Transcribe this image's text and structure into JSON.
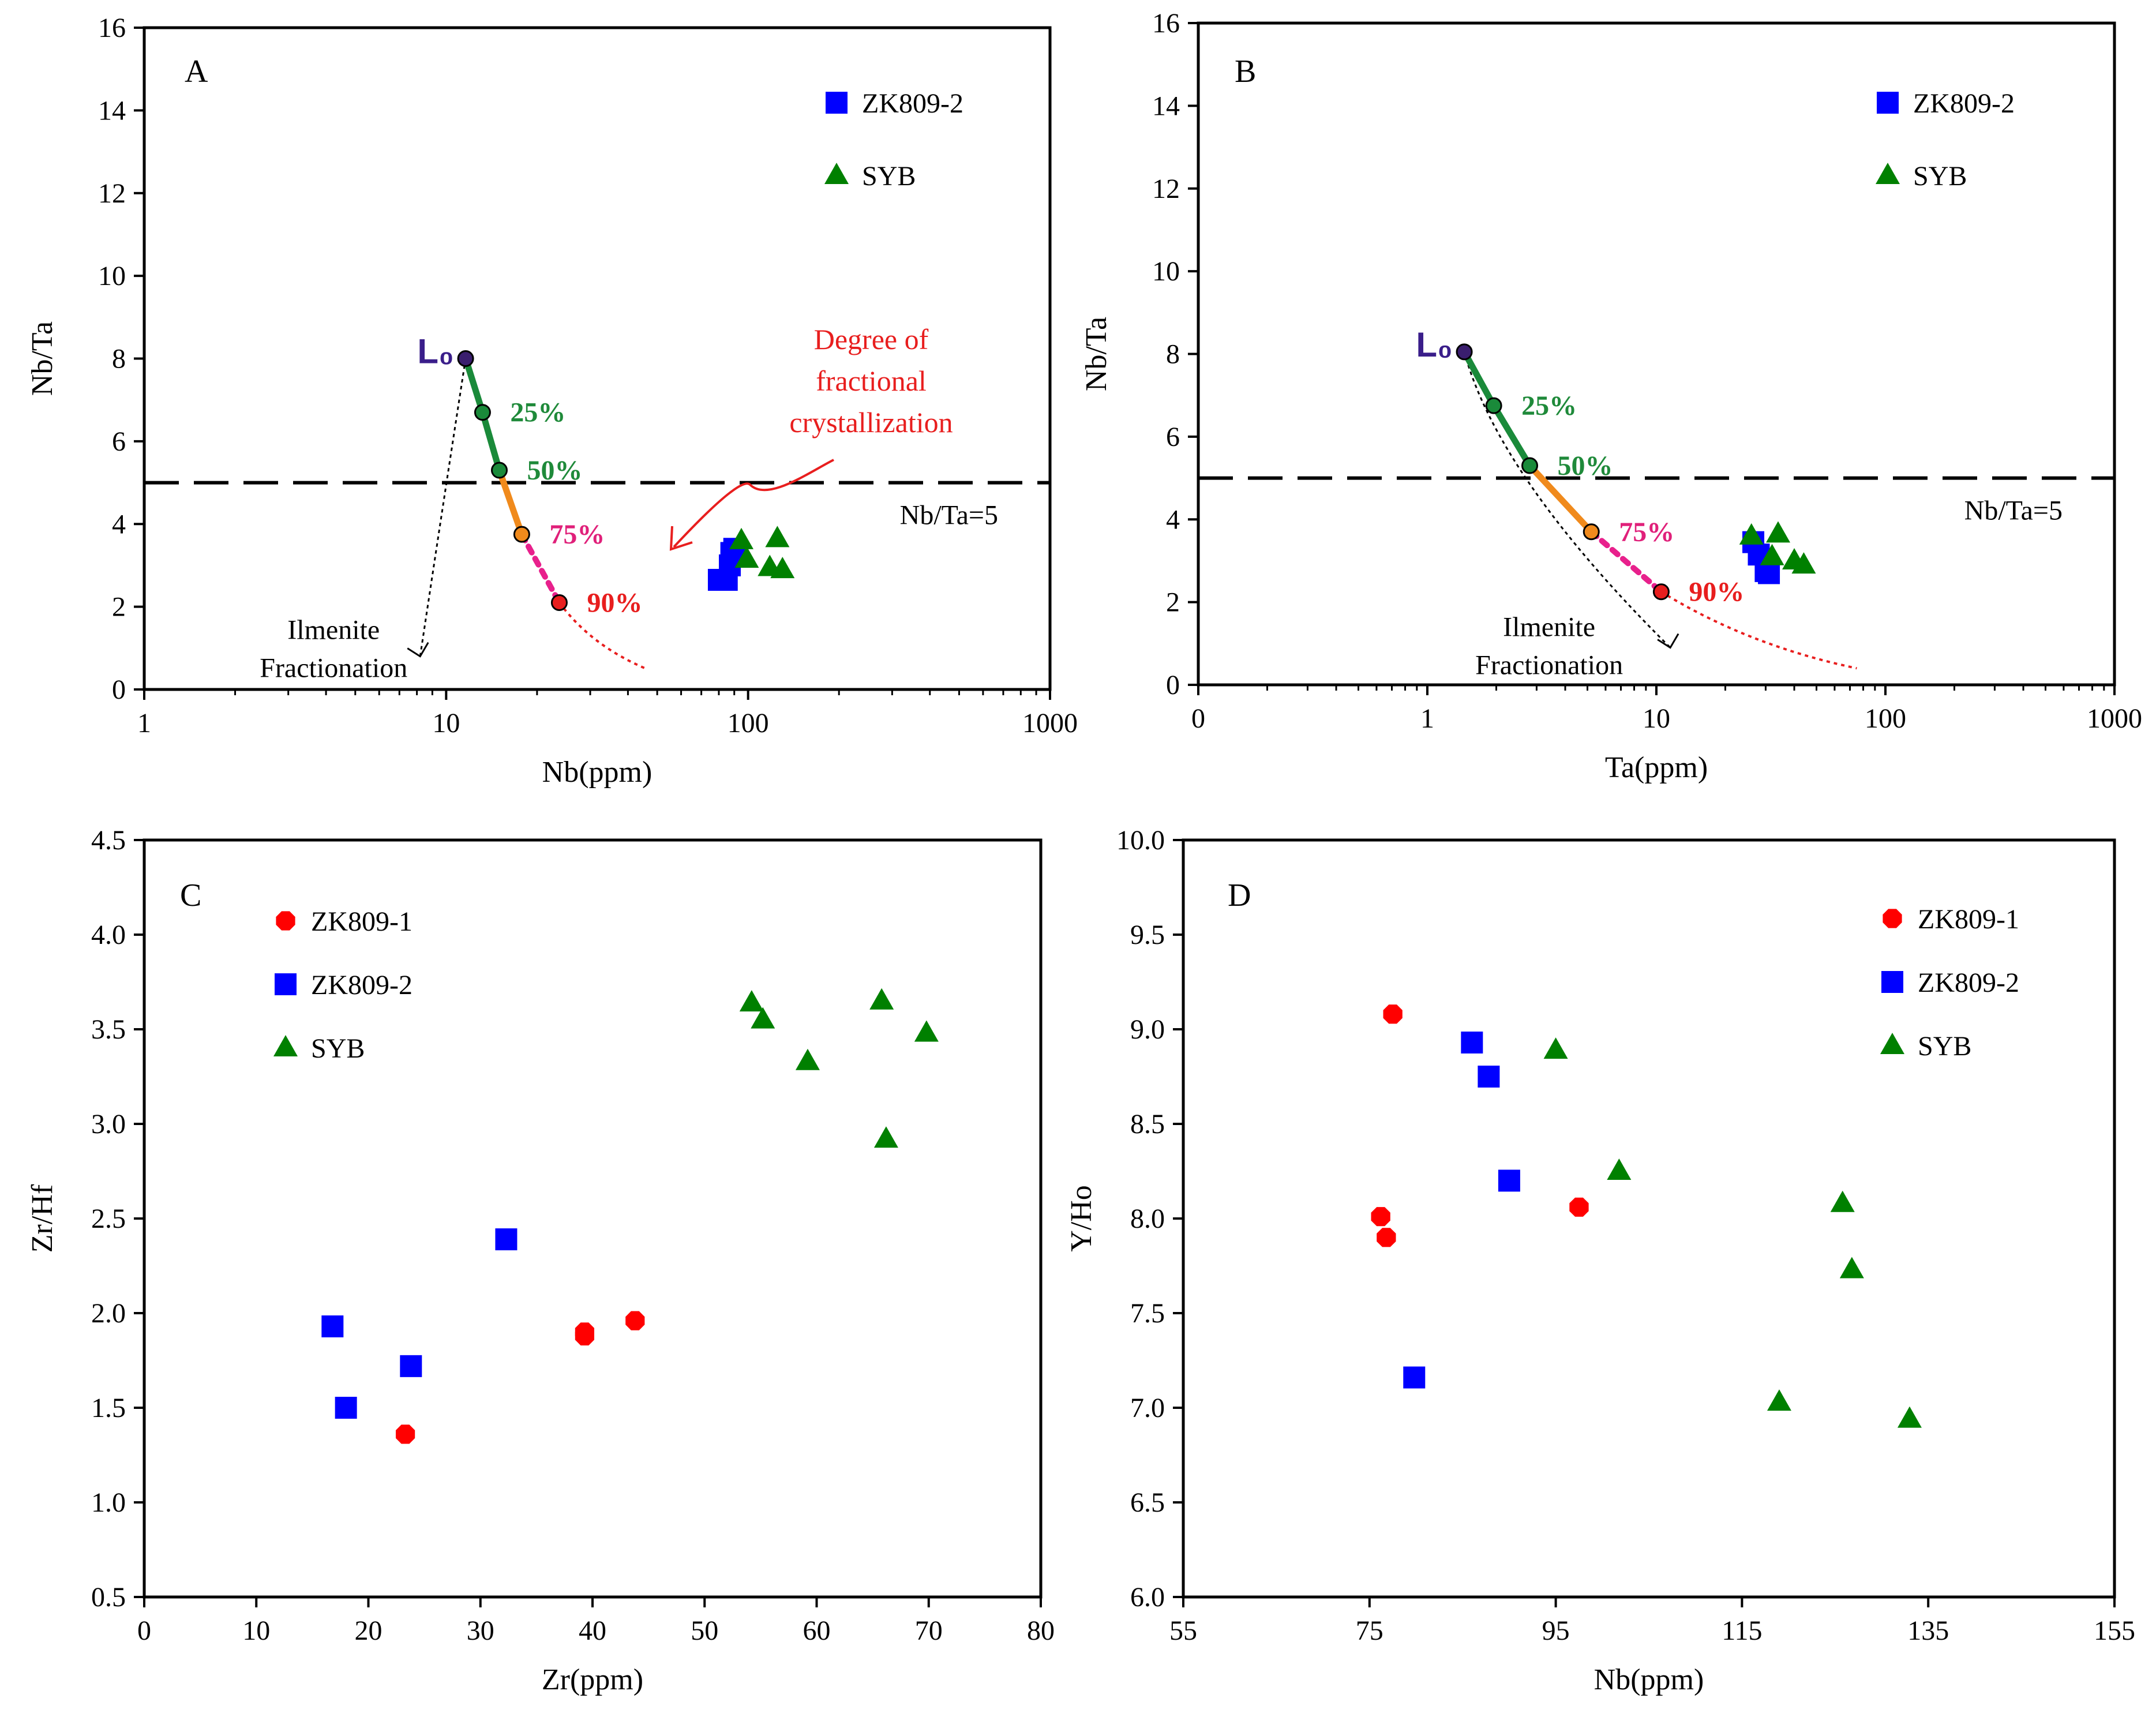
{
  "colors": {
    "zk809_1": "#ff0000",
    "zk809_2": "#0000ff",
    "syb": "#008000",
    "curve_green": "#1a8a3a",
    "curve_orange": "#f08a1c",
    "curve_pink": "#e8208c",
    "curve_red": "#e81e1e",
    "l0_point": "#3a1e6e",
    "pct_green": "#1f8a3a",
    "pct_pink": "#e0207a",
    "pct_red": "#e81e1e",
    "l0_label": "#3a1e8a"
  },
  "chart_data": [
    {
      "panel": "A",
      "type": "scatter",
      "x_scale": "log",
      "xlim": [
        1,
        1000
      ],
      "ylim": [
        0,
        16
      ],
      "xlabel": "Nb(ppm)",
      "ylabel": "Nb/Ta",
      "x_ticks": [
        "1",
        "10",
        "100",
        "1000"
      ],
      "y_ticks": [
        "0",
        "2",
        "4",
        "6",
        "8",
        "10",
        "12",
        "14",
        "16"
      ],
      "reference_line": {
        "y": 5,
        "label": "Nb/Ta=5"
      },
      "start_label": "L₀",
      "curve_points": [
        {
          "x": 11.6,
          "y": 8.0,
          "label": ""
        },
        {
          "x": 13.2,
          "y": 6.7,
          "label": "25%"
        },
        {
          "x": 15.0,
          "y": 5.3,
          "label": "50%"
        },
        {
          "x": 17.8,
          "y": 3.75,
          "label": "75%"
        },
        {
          "x": 23.7,
          "y": 2.1,
          "label": "90%"
        }
      ],
      "curve_tail_end": {
        "x": 46,
        "y": 0.5
      },
      "trend_arrow": {
        "from": {
          "x": 11.6,
          "y": 8.0
        },
        "to": {
          "x": 8.2,
          "y": 0.8
        },
        "label": [
          "Ilmenite",
          "Fractionation"
        ]
      },
      "annotation": {
        "lines": [
          "Degree of",
          "fractional",
          "crystallization"
        ]
      },
      "legend": [
        {
          "name": "ZK809-2",
          "marker": "square"
        },
        {
          "name": "SYB",
          "marker": "triangle"
        }
      ],
      "series": [
        {
          "name": "ZK809-2",
          "marker": "square",
          "points": [
            {
              "x": 80,
              "y": 2.65
            },
            {
              "x": 85,
              "y": 2.65
            },
            {
              "x": 87,
              "y": 3.0
            },
            {
              "x": 88,
              "y": 3.3
            },
            {
              "x": 90,
              "y": 3.4
            }
          ]
        },
        {
          "name": "SYB",
          "marker": "triangle",
          "points": [
            {
              "x": 95,
              "y": 3.6
            },
            {
              "x": 99,
              "y": 3.15
            },
            {
              "x": 118,
              "y": 2.95
            },
            {
              "x": 125,
              "y": 3.65
            },
            {
              "x": 130,
              "y": 2.9
            }
          ]
        }
      ]
    },
    {
      "panel": "B",
      "type": "scatter",
      "x_scale": "log",
      "xlim": [
        0.1,
        1000
      ],
      "ylim": [
        0,
        16
      ],
      "xlabel": "Ta(ppm)",
      "ylabel": "Nb/Ta",
      "x_ticks": [
        "0",
        "1",
        "10",
        "100",
        "1000"
      ],
      "y_ticks": [
        "0",
        "2",
        "4",
        "6",
        "8",
        "10",
        "12",
        "14",
        "16"
      ],
      "reference_line": {
        "y": 5,
        "label": "Nb/Ta=5"
      },
      "start_label": "L₀",
      "curve_points": [
        {
          "x": 1.45,
          "y": 8.05,
          "label": ""
        },
        {
          "x": 1.95,
          "y": 6.75,
          "label": "25%"
        },
        {
          "x": 2.8,
          "y": 5.3,
          "label": "50%"
        },
        {
          "x": 5.2,
          "y": 3.7,
          "label": "75%"
        },
        {
          "x": 10.5,
          "y": 2.25,
          "label": "90%"
        }
      ],
      "curve_tail_end": {
        "x": 75,
        "y": 0.4
      },
      "trend_arrow": {
        "from": {
          "x": 1.45,
          "y": 8.05
        },
        "to": {
          "x": 11.5,
          "y": 0.9
        },
        "label": [
          "Ilmenite",
          "Fractionation"
        ]
      },
      "legend": [
        {
          "name": "ZK809-2",
          "marker": "square"
        },
        {
          "name": "SYB",
          "marker": "triangle"
        }
      ],
      "series": [
        {
          "name": "ZK809-2",
          "marker": "square",
          "points": [
            {
              "x": 26.5,
              "y": 3.45
            },
            {
              "x": 28,
              "y": 3.15
            },
            {
              "x": 30,
              "y": 2.75
            },
            {
              "x": 31,
              "y": 2.7
            }
          ]
        },
        {
          "name": "SYB",
          "marker": "triangle",
          "points": [
            {
              "x": 26,
              "y": 3.6
            },
            {
              "x": 32,
              "y": 3.1
            },
            {
              "x": 34,
              "y": 3.65
            },
            {
              "x": 40,
              "y": 3.0
            },
            {
              "x": 44,
              "y": 2.9
            }
          ]
        }
      ]
    },
    {
      "panel": "C",
      "type": "scatter",
      "xlim": [
        0,
        80
      ],
      "ylim": [
        0.5,
        4.5
      ],
      "xlabel": "Zr(ppm)",
      "ylabel": "Zr/Hf",
      "x_ticks": [
        "0",
        "10",
        "20",
        "30",
        "40",
        "50",
        "60",
        "70",
        "80"
      ],
      "y_ticks": [
        "0.5",
        "1.0",
        "1.5",
        "2.0",
        "2.5",
        "3.0",
        "3.5",
        "4.0",
        "4.5"
      ],
      "legend": [
        {
          "name": "ZK809-1",
          "marker": "circle"
        },
        {
          "name": "ZK809-2",
          "marker": "square"
        },
        {
          "name": "SYB",
          "marker": "triangle"
        }
      ],
      "series": [
        {
          "name": "ZK809-1",
          "marker": "circle",
          "points": [
            {
              "x": 23.3,
              "y": 1.36
            },
            {
              "x": 39.3,
              "y": 1.88
            },
            {
              "x": 39.3,
              "y": 1.9
            },
            {
              "x": 43.8,
              "y": 1.96
            }
          ]
        },
        {
          "name": "ZK809-2",
          "marker": "square",
          "points": [
            {
              "x": 16.8,
              "y": 1.93
            },
            {
              "x": 18.0,
              "y": 1.5
            },
            {
              "x": 23.8,
              "y": 1.72
            },
            {
              "x": 32.3,
              "y": 2.39
            }
          ]
        },
        {
          "name": "SYB",
          "marker": "triangle",
          "points": [
            {
              "x": 54.2,
              "y": 3.64
            },
            {
              "x": 55.2,
              "y": 3.55
            },
            {
              "x": 59.2,
              "y": 3.33
            },
            {
              "x": 65.8,
              "y": 3.65
            },
            {
              "x": 66.2,
              "y": 2.92
            },
            {
              "x": 69.8,
              "y": 3.48
            }
          ]
        }
      ]
    },
    {
      "panel": "D",
      "type": "scatter",
      "xlim": [
        55,
        155
      ],
      "ylim": [
        6.0,
        10.0
      ],
      "xlabel": "Nb(ppm)",
      "ylabel": "Y/Ho",
      "x_ticks": [
        "55",
        "75",
        "95",
        "115",
        "135",
        "155"
      ],
      "y_ticks": [
        "6.0",
        "6.5",
        "7.0",
        "7.5",
        "8.0",
        "8.5",
        "9.0",
        "9.5",
        "10.0"
      ],
      "legend": [
        {
          "name": "ZK809-1",
          "marker": "circle"
        },
        {
          "name": "ZK809-2",
          "marker": "square"
        },
        {
          "name": "SYB",
          "marker": "triangle"
        }
      ],
      "series": [
        {
          "name": "ZK809-1",
          "marker": "circle",
          "points": [
            {
              "x": 76.2,
              "y": 8.01
            },
            {
              "x": 76.8,
              "y": 7.9
            },
            {
              "x": 77.5,
              "y": 9.08
            },
            {
              "x": 97.5,
              "y": 8.06
            }
          ]
        },
        {
          "name": "ZK809-2",
          "marker": "square",
          "points": [
            {
              "x": 79.8,
              "y": 7.16
            },
            {
              "x": 86.0,
              "y": 8.93
            },
            {
              "x": 87.8,
              "y": 8.75
            },
            {
              "x": 90.0,
              "y": 8.2
            }
          ]
        },
        {
          "name": "SYB",
          "marker": "triangle",
          "points": [
            {
              "x": 95.0,
              "y": 8.89
            },
            {
              "x": 101.8,
              "y": 8.25
            },
            {
              "x": 119.0,
              "y": 7.03
            },
            {
              "x": 125.8,
              "y": 8.08
            },
            {
              "x": 126.8,
              "y": 7.73
            },
            {
              "x": 133.0,
              "y": 6.94
            }
          ]
        }
      ]
    }
  ]
}
